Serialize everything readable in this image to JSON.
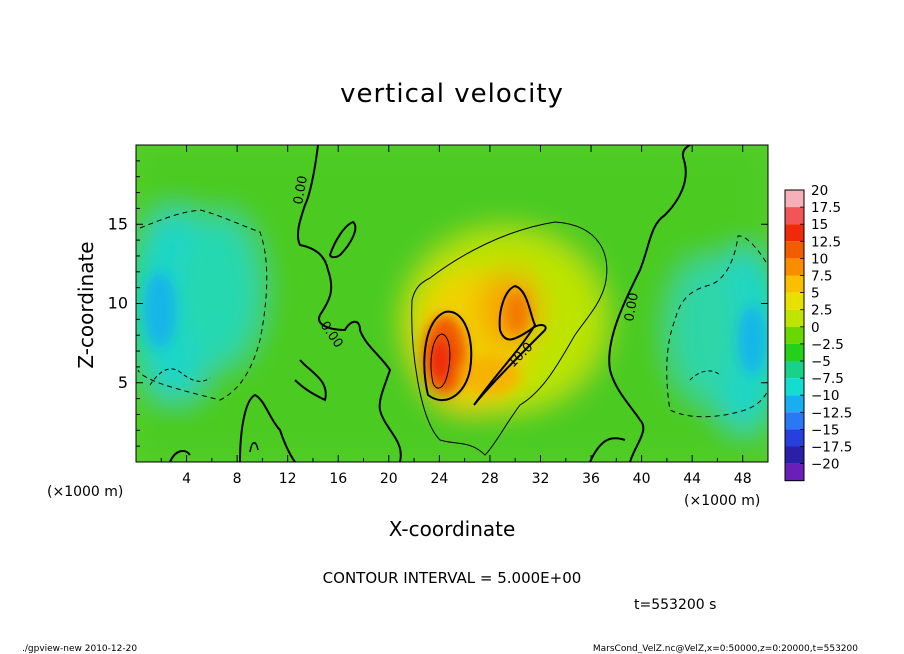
{
  "chart_data": {
    "type": "heatmap",
    "title": "vertical velocity",
    "xlabel": "X-coordinate",
    "ylabel": "Z-coordinate",
    "x_unit": "(×1000 m)",
    "x_unit_right": "(×1000 m)",
    "xlim": [
      0,
      50
    ],
    "ylim": [
      0,
      20
    ],
    "x_ticks": [
      "4",
      "8",
      "12",
      "16",
      "20",
      "24",
      "28",
      "32",
      "36",
      "40",
      "44",
      "48"
    ],
    "y_ticks": [
      "5",
      "10",
      "15"
    ],
    "colorbar": {
      "labels": [
        "20",
        "17.5",
        "15",
        "12.5",
        "10",
        "7.5",
        "5",
        "2.5",
        "0",
        "−2.5",
        "−5",
        "−7.5",
        "−10",
        "−12.5",
        "−15",
        "−17.5",
        "−20"
      ],
      "colors": [
        "#f7b0b8",
        "#f25555",
        "#ee2a0a",
        "#f25d00",
        "#f98d00",
        "#f8c000",
        "#e8e100",
        "#bfe400",
        "#68d800",
        "#24d018",
        "#18d28a",
        "#15dcd0",
        "#18aef0",
        "#2a78f4",
        "#2740dd",
        "#2a1fa6",
        "#6a1fb8"
      ]
    },
    "contour_interval": "CONTOUR INTERVAL = 5.000E+00",
    "contour_labels": [
      "0.00",
      "0.00",
      "10.0",
      "0.00"
    ],
    "time": "t=553200 s",
    "footer_left": "./gpview-new   2010-12-20",
    "footer_right": "MarsCond_VelZ.nc@VelZ,x=0:50000,z=0:20000,t=553200",
    "field": {
      "description": "vertical velocity extrema",
      "blobs": [
        {
          "x": 24.0,
          "z": 7.0,
          "value": 20
        },
        {
          "x": 29.5,
          "z": 8.0,
          "value": 13
        },
        {
          "x": 25.0,
          "z": 5.0,
          "value": 8
        },
        {
          "x": 27.0,
          "z": 10.0,
          "value": 5
        },
        {
          "x": 2.5,
          "z": 10.0,
          "value": -10
        },
        {
          "x": 6.0,
          "z": 9.0,
          "value": -7
        },
        {
          "x": 47.5,
          "z": 7.0,
          "value": -9
        },
        {
          "x": 44.0,
          "z": 8.0,
          "value": -6
        }
      ]
    }
  }
}
